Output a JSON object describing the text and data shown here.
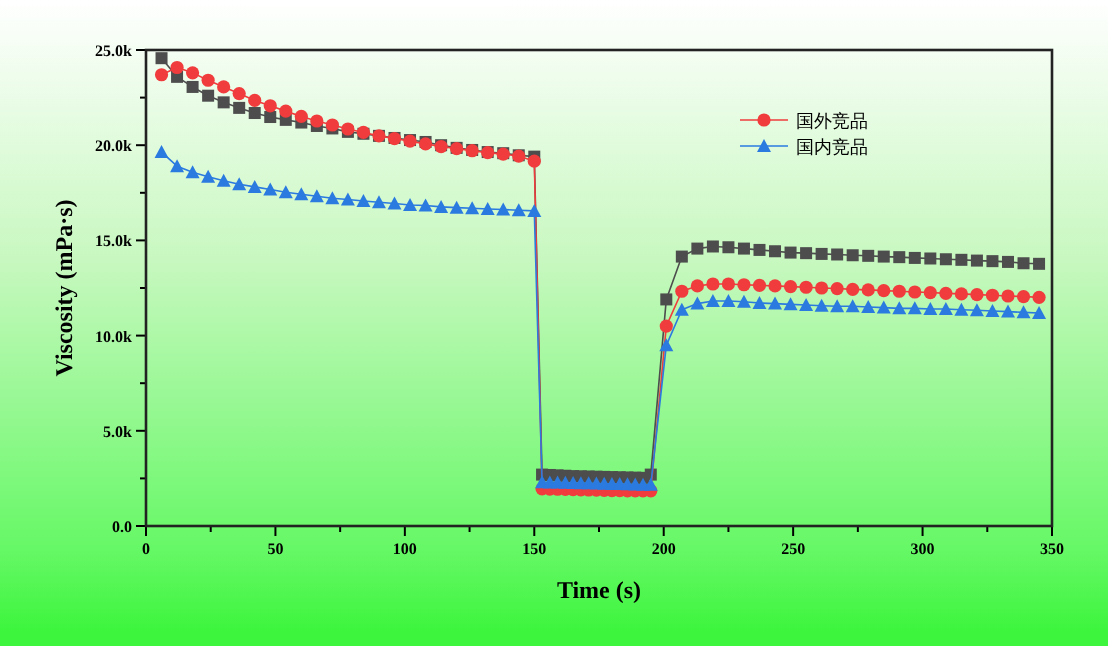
{
  "chart_data": {
    "type": "line",
    "xlabel": "Time (s)",
    "ylabel": "Viscosity (mPa·s)",
    "x": [
      6,
      12,
      18,
      24,
      30,
      36,
      42,
      48,
      54,
      60,
      66,
      72,
      78,
      84,
      90,
      96,
      102,
      108,
      114,
      120,
      126,
      132,
      138,
      144,
      150,
      153,
      156,
      159,
      162,
      165,
      168,
      171,
      174,
      177,
      180,
      183,
      186,
      189,
      192,
      195,
      201,
      207,
      213,
      219,
      225,
      231,
      237,
      243,
      249,
      255,
      261,
      267,
      273,
      279,
      285,
      291,
      297,
      303,
      309,
      315,
      321,
      327,
      333,
      339,
      345
    ],
    "xlim": [
      0,
      350
    ],
    "xticks": [
      0,
      {
        "value": 25,
        "label": null
      },
      50,
      {
        "value": 75,
        "label": null
      },
      100,
      {
        "value": 125,
        "label": null
      },
      150,
      {
        "value": 175,
        "label": null
      },
      200,
      {
        "value": 225,
        "label": null
      },
      250,
      {
        "value": 275,
        "label": null
      },
      300,
      {
        "value": 325,
        "label": null
      },
      350
    ],
    "ylim": [
      0,
      25000
    ],
    "yticks": [
      {
        "value": 0,
        "label": "0.0"
      },
      {
        "value": 2500,
        "label": null
      },
      {
        "value": 5000,
        "label": "5.0k"
      },
      {
        "value": 7500,
        "label": null
      },
      {
        "value": 10000,
        "label": "10.0k"
      },
      {
        "value": 12500,
        "label": null
      },
      {
        "value": 15000,
        "label": "15.0k"
      },
      {
        "value": 17500,
        "label": null
      },
      {
        "value": 20000,
        "label": "20.0k"
      },
      {
        "value": 22500,
        "label": null
      },
      {
        "value": 25000,
        "label": "25.0k"
      }
    ],
    "grid": false,
    "legend": "top right",
    "series": [
      {
        "color": "#4d4d4d",
        "marker": "square",
        "values": [
          24570,
          23590,
          23060,
          22600,
          22250,
          21960,
          21690,
          21480,
          21330,
          21190,
          21010,
          20880,
          20700,
          20600,
          20490,
          20380,
          20270,
          20170,
          20000,
          19860,
          19750,
          19640,
          19580,
          19470,
          19400,
          2700,
          2680,
          2660,
          2640,
          2620,
          2610,
          2600,
          2590,
          2580,
          2570,
          2560,
          2550,
          2540,
          2530,
          2700,
          11900,
          14150,
          14570,
          14680,
          14640,
          14570,
          14500,
          14430,
          14360,
          14330,
          14290,
          14260,
          14220,
          14190,
          14150,
          14120,
          14080,
          14050,
          14010,
          13980,
          13940,
          13910,
          13870,
          13800,
          13770
        ]
      },
      {
        "name": "国外竞品",
        "color": "#f03c3c",
        "marker": "circle",
        "values": [
          23700,
          24080,
          23800,
          23410,
          23060,
          22710,
          22350,
          22070,
          21790,
          21510,
          21270,
          21060,
          20850,
          20670,
          20490,
          20350,
          20210,
          20070,
          19930,
          19820,
          19710,
          19610,
          19530,
          19430,
          19160,
          1950,
          1940,
          1930,
          1920,
          1910,
          1900,
          1890,
          1880,
          1870,
          1860,
          1860,
          1850,
          1850,
          1850,
          1850,
          10500,
          12330,
          12610,
          12710,
          12710,
          12670,
          12640,
          12610,
          12570,
          12540,
          12500,
          12470,
          12430,
          12400,
          12360,
          12330,
          12290,
          12260,
          12220,
          12190,
          12150,
          12120,
          12080,
          12050,
          12010
        ]
      },
      {
        "name": "国内竞品",
        "color": "#2a7ae0",
        "marker": "triangle",
        "values": [
          19640,
          18900,
          18580,
          18340,
          18130,
          17950,
          17810,
          17670,
          17530,
          17420,
          17320,
          17210,
          17150,
          17070,
          17000,
          16940,
          16860,
          16830,
          16760,
          16720,
          16690,
          16650,
          16620,
          16580,
          16550,
          2300,
          2290,
          2280,
          2270,
          2260,
          2250,
          2240,
          2230,
          2220,
          2210,
          2200,
          2190,
          2180,
          2170,
          2160,
          9490,
          11360,
          11680,
          11820,
          11820,
          11780,
          11710,
          11680,
          11640,
          11610,
          11570,
          11540,
          11540,
          11500,
          11470,
          11430,
          11430,
          11400,
          11400,
          11360,
          11330,
          11290,
          11260,
          11220,
          11190
        ]
      }
    ]
  }
}
